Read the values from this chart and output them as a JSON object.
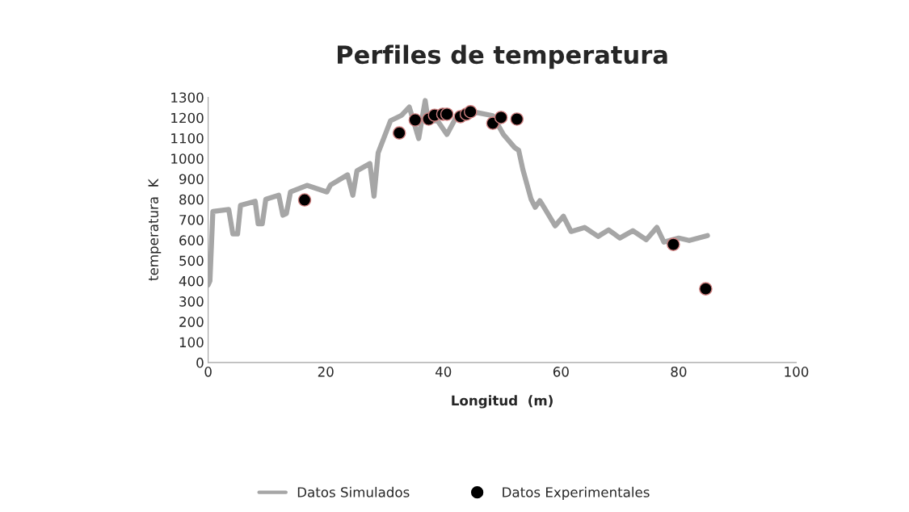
{
  "chart_data": {
    "type": "line",
    "title": "Perfiles de temperatura",
    "xlabel": "Longitud  (m)",
    "ylabel": "temperatura  K",
    "xlim": [
      0,
      100
    ],
    "xticks": [
      0,
      20,
      40,
      60,
      80,
      100
    ],
    "ylim": [
      0,
      1300
    ],
    "yticks": [
      0,
      100,
      200,
      300,
      400,
      500,
      600,
      700,
      800,
      900,
      1000,
      1100,
      1200,
      1300
    ],
    "grid": false,
    "legend": "bottom",
    "series": [
      {
        "name": "Datos Simulados",
        "color": "#a6a6a6",
        "marker": "none",
        "line_style": "solid",
        "x": [
          0,
          0.3,
          0.8,
          3.5,
          4.2,
          5,
          5.5,
          8,
          8.5,
          9.2,
          9.8,
          12,
          12.7,
          13.3,
          14,
          16.8,
          20.2,
          20.8,
          23.7,
          24.6,
          25.3,
          27.5,
          28.2,
          28.9,
          31,
          32.9,
          34.2,
          35.8,
          36.9,
          37.4,
          39,
          40.6,
          42,
          45.7,
          48.4,
          50.2,
          52.1,
          52.8,
          53.5,
          54.9,
          55.6,
          56.4,
          57.1,
          59,
          60.4,
          61.7,
          64,
          66.3,
          68.1,
          70,
          72.2,
          74.5,
          76.3,
          77.5,
          80,
          81.8,
          84.9
        ],
        "values": [
          380,
          400,
          740,
          750,
          630,
          630,
          770,
          790,
          680,
          680,
          800,
          820,
          722,
          730,
          836,
          868,
          836,
          870,
          920,
          820,
          940,
          975,
          815,
          1027,
          1185,
          1212,
          1252,
          1098,
          1284,
          1185,
          1185,
          1118,
          1193,
          1225,
          1210,
          1118,
          1054,
          1040,
          947,
          801,
          761,
          793,
          761,
          670,
          717,
          642,
          662,
          618,
          650,
          610,
          646,
          602,
          662,
          590,
          610,
          598,
          622
        ]
      },
      {
        "name": "Datos Experimentales",
        "type": "scatter",
        "color": "#000000",
        "marker": "circle",
        "x": [
          16.4,
          32.5,
          35.2,
          37.5,
          38.5,
          39.9,
          40.6,
          42.9,
          43.9,
          44.6,
          48.4,
          49.8,
          52.5,
          79.1,
          84.6
        ],
        "values": [
          797,
          1125,
          1189,
          1193,
          1212,
          1217,
          1217,
          1205,
          1217,
          1229,
          1173,
          1201,
          1193,
          579,
          361
        ]
      }
    ]
  }
}
